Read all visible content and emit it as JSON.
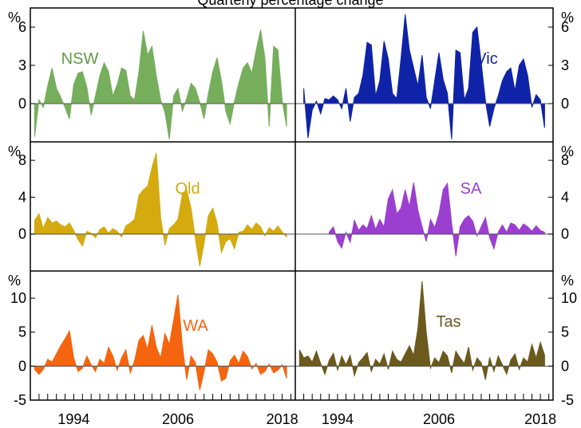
{
  "chart_data": {
    "type": "area",
    "title": "Quarterly percentage change",
    "unit_label": "%",
    "x_axis": {
      "ticks": [
        1994,
        2006,
        2018
      ],
      "range": [
        1989,
        2019.5
      ]
    },
    "panels": [
      {
        "name": "NSW",
        "color": "#76ae5c",
        "label_color": "#5e9a44",
        "y_ticks": [
          0,
          3,
          6
        ],
        "ylim": [
          -3,
          7.5
        ],
        "x": [
          1989.5,
          1990,
          1990.5,
          1991,
          1991.5,
          1992,
          1992.5,
          1993,
          1993.5,
          1994,
          1994.5,
          1995,
          1995.5,
          1996,
          1996.5,
          1997,
          1997.5,
          1998,
          1998.5,
          1999,
          1999.5,
          2000,
          2000.5,
          2001,
          2001.5,
          2002,
          2002.5,
          2003,
          2003.5,
          2004,
          2004.5,
          2005,
          2005.5,
          2006,
          2006.5,
          2007,
          2007.5,
          2008,
          2008.5,
          2009,
          2009.5,
          2010,
          2010.5,
          2011,
          2011.5,
          2012,
          2012.5,
          2013,
          2013.5,
          2014,
          2014.5,
          2015,
          2015.5,
          2016,
          2016.5,
          2017,
          2017.5,
          2018,
          2018.5
        ],
        "values": [
          -2.6,
          0.3,
          -0.3,
          1.4,
          2.8,
          1.2,
          0.5,
          -0.3,
          -1.2,
          1.5,
          2.4,
          2.5,
          1.3,
          -0.9,
          0.6,
          2.2,
          3.2,
          2.5,
          0.6,
          1.5,
          2.8,
          2.6,
          0.6,
          0.3,
          2.5,
          5.7,
          3.8,
          4.5,
          2.2,
          0.3,
          -0.7,
          -2.8,
          0.6,
          1.2,
          -0.6,
          0.4,
          1.6,
          1.2,
          0.1,
          -1.2,
          0.8,
          2.5,
          3.6,
          1.8,
          -0.6,
          -1.6,
          0.2,
          1.6,
          2.8,
          3.2,
          2.4,
          4.2,
          5.8,
          3.6,
          -1.8,
          4.5,
          4.2,
          0.2,
          -1.8
        ]
      },
      {
        "name": "Vic",
        "color": "#0f23a8",
        "label_color": "#0f23a8",
        "y_ticks": [
          0,
          3,
          6
        ],
        "ylim": [
          -3,
          7.5
        ],
        "x": [
          1990,
          1990.5,
          1991,
          1991.5,
          1992,
          1992.5,
          1993,
          1993.5,
          1994,
          1994.5,
          1995,
          1995.5,
          1996,
          1996.5,
          1997,
          1997.5,
          1998,
          1998.5,
          1999,
          1999.5,
          2000,
          2000.5,
          2001,
          2001.5,
          2002,
          2002.5,
          2003,
          2003.5,
          2004,
          2004.5,
          2005,
          2005.5,
          2006,
          2006.5,
          2007,
          2007.5,
          2008,
          2008.5,
          2009,
          2009.5,
          2010,
          2010.5,
          2011,
          2011.5,
          2012,
          2012.5,
          2013,
          2013.5,
          2014,
          2014.5,
          2015,
          2015.5,
          2016,
          2016.5,
          2017,
          2017.5,
          2018,
          2018.5
        ],
        "values": [
          1.2,
          -2.7,
          -0.5,
          0.2,
          -0.8,
          0.4,
          0.3,
          0.6,
          0.3,
          -0.4,
          1.2,
          -1.4,
          0.5,
          0.8,
          2.2,
          4.8,
          4.6,
          0.6,
          1.8,
          4.9,
          3.5,
          0.8,
          0.4,
          3.5,
          7.0,
          4.2,
          2.8,
          1.4,
          3.8,
          0.5,
          -0.4,
          1.8,
          4.0,
          1.9,
          0.8,
          -2.8,
          4.2,
          4.0,
          0.3,
          1.2,
          5.6,
          6.0,
          3.2,
          0.2,
          -1.8,
          -0.4,
          0.6,
          1.8,
          2.5,
          2.8,
          1.0,
          3.0,
          3.5,
          2.2,
          -0.3,
          0.7,
          0.3,
          -1.9
        ]
      },
      {
        "name": "Qld",
        "color": "#d4aa0e",
        "label_color": "#d4aa0e",
        "y_ticks": [
          0,
          4,
          8
        ],
        "ylim": [
          -4,
          10
        ],
        "x": [
          1989.5,
          1990,
          1990.5,
          1991,
          1991.5,
          1992,
          1992.5,
          1993,
          1993.5,
          1994,
          1994.5,
          1995,
          1995.5,
          1996,
          1996.5,
          1997,
          1997.5,
          1998,
          1998.5,
          1999,
          1999.5,
          2000,
          2000.5,
          2001,
          2001.5,
          2002,
          2002.5,
          2003,
          2003.5,
          2004,
          2004.5,
          2005,
          2005.5,
          2006,
          2006.5,
          2007,
          2007.5,
          2008,
          2008.5,
          2009,
          2009.5,
          2010,
          2010.5,
          2011,
          2011.5,
          2012,
          2012.5,
          2013,
          2013.5,
          2014,
          2014.5,
          2015,
          2015.5,
          2016,
          2016.5,
          2017,
          2017.5,
          2018,
          2018.5
        ],
        "values": [
          1.5,
          2.2,
          0.6,
          1.8,
          1.2,
          1.4,
          1.0,
          0.8,
          1.2,
          0.4,
          -0.6,
          -1.3,
          0.3,
          0.1,
          -0.4,
          0.5,
          0.8,
          0.1,
          0.6,
          0.3,
          -0.3,
          0.9,
          1.2,
          1.6,
          4.2,
          4.8,
          5.2,
          7.2,
          8.8,
          1.8,
          -1.2,
          0.6,
          1.0,
          1.6,
          4.3,
          4.8,
          2.8,
          -0.5,
          -3.5,
          -1.0,
          2.0,
          2.8,
          1.2,
          -2.0,
          -0.8,
          -0.5,
          -1.6,
          0.2,
          0.3,
          1.0,
          0.5,
          1.2,
          0.8,
          -0.2,
          0.7,
          0.3,
          0.9,
          0.2,
          -0.3
        ]
      },
      {
        "name": "SA",
        "color": "#9b3fd0",
        "label_color": "#9b3fd0",
        "y_ticks": [
          0,
          4,
          8
        ],
        "ylim": [
          -4,
          10
        ],
        "x": [
          1993,
          1993.5,
          1994,
          1994.5,
          1995,
          1995.5,
          1996,
          1996.5,
          1997,
          1997.5,
          1998,
          1998.5,
          1999,
          1999.5,
          2000,
          2000.5,
          2001,
          2001.5,
          2002,
          2002.5,
          2003,
          2003.5,
          2004,
          2004.5,
          2005,
          2005.5,
          2006,
          2006.5,
          2007,
          2007.5,
          2008,
          2008.5,
          2009,
          2009.5,
          2010,
          2010.5,
          2011,
          2011.5,
          2012,
          2012.5,
          2013,
          2013.5,
          2014,
          2014.5,
          2015,
          2015.5,
          2016,
          2016.5,
          2017,
          2017.5,
          2018,
          2018.5
        ],
        "values": [
          0.2,
          0.8,
          -0.8,
          -1.5,
          0.2,
          -0.9,
          1.5,
          0.4,
          1.0,
          0.6,
          2.0,
          0.5,
          1.6,
          0.8,
          3.8,
          4.8,
          2.2,
          2.8,
          4.8,
          3.0,
          5.6,
          2.6,
          0.8,
          -0.8,
          1.6,
          0.7,
          2.2,
          4.8,
          5.5,
          1.2,
          -2.4,
          0.8,
          1.6,
          2.0,
          1.4,
          -0.2,
          0.8,
          1.8,
          -0.4,
          -1.6,
          0.2,
          1.0,
          0.2,
          1.2,
          1.0,
          0.4,
          1.1,
          0.8,
          0.3,
          0.9,
          0.4,
          0.2
        ]
      },
      {
        "name": "WA",
        "color": "#f5650f",
        "label_color": "#f5650f",
        "y_ticks": [
          -5,
          0,
          5,
          10
        ],
        "ylim": [
          -5,
          14
        ],
        "x": [
          1989.5,
          1990,
          1990.5,
          1991,
          1991.5,
          1992,
          1992.5,
          1993,
          1993.5,
          1994,
          1994.5,
          1995,
          1995.5,
          1996,
          1996.5,
          1997,
          1997.5,
          1998,
          1998.5,
          1999,
          1999.5,
          2000,
          2000.5,
          2001,
          2001.5,
          2002,
          2002.5,
          2003,
          2003.5,
          2004,
          2004.5,
          2005,
          2005.5,
          2006,
          2006.5,
          2007,
          2007.5,
          2008,
          2008.5,
          2009,
          2009.5,
          2010,
          2010.5,
          2011,
          2011.5,
          2012,
          2012.5,
          2013,
          2013.5,
          2014,
          2014.5,
          2015,
          2015.5,
          2016,
          2016.5,
          2017,
          2017.5,
          2018,
          2018.5
        ],
        "values": [
          -0.5,
          -1.2,
          -0.5,
          1.0,
          0.6,
          1.8,
          3.0,
          4.0,
          5.2,
          1.2,
          -0.8,
          -0.3,
          1.5,
          0.2,
          -0.8,
          1.0,
          0.4,
          2.8,
          1.5,
          -0.6,
          1.2,
          2.4,
          -1.0,
          0.8,
          3.8,
          4.5,
          2.5,
          6.0,
          2.8,
          1.2,
          4.8,
          3.2,
          6.8,
          10.5,
          3.0,
          -2.0,
          1.5,
          0.5,
          -3.5,
          -0.8,
          2.4,
          1.8,
          0.6,
          -2.2,
          -1.8,
          0.8,
          1.6,
          0.4,
          2.2,
          1.4,
          -0.4,
          0.4,
          -1.2,
          -0.8,
          0.3,
          -1.0,
          -0.6,
          0.2,
          -1.8
        ]
      },
      {
        "name": "Tas",
        "color": "#6b5a1c",
        "label_color": "#6b5a1c",
        "y_ticks": [
          -5,
          0,
          5,
          10
        ],
        "ylim": [
          -5,
          14
        ],
        "x": [
          1989.5,
          1990,
          1990.5,
          1991,
          1991.5,
          1992,
          1992.5,
          1993,
          1993.5,
          1994,
          1994.5,
          1995,
          1995.5,
          1996,
          1996.5,
          1997,
          1997.5,
          1998,
          1998.5,
          1999,
          1999.5,
          2000,
          2000.5,
          2001,
          2001.5,
          2002,
          2002.5,
          2003,
          2003.5,
          2004,
          2004.5,
          2005,
          2005.5,
          2006,
          2006.5,
          2007,
          2007.5,
          2008,
          2008.5,
          2009,
          2009.5,
          2010,
          2010.5,
          2011,
          2011.5,
          2012,
          2012.5,
          2013,
          2013.5,
          2014,
          2014.5,
          2015,
          2015.5,
          2016,
          2016.5,
          2017,
          2017.5,
          2018,
          2018.5
        ],
        "values": [
          2.4,
          1.2,
          1.5,
          0.6,
          2.2,
          0.4,
          -1.2,
          0.8,
          1.9,
          -0.6,
          1.5,
          0.2,
          1.6,
          -1.4,
          0.5,
          1.2,
          2.0,
          -0.8,
          1.0,
          0.3,
          1.8,
          -0.5,
          2.2,
          1.0,
          0.6,
          1.8,
          3.0,
          1.6,
          5.5,
          12.5,
          5.0,
          -0.3,
          1.2,
          0.5,
          2.2,
          1.5,
          -1.0,
          2.2,
          1.2,
          0.4,
          2.8,
          -0.6,
          1.2,
          0.5,
          -2.0,
          1.3,
          -0.8,
          1.5,
          0.2,
          -1.2,
          0.9,
          1.8,
          -0.5,
          1.2,
          0.6,
          3.2,
          1.2,
          3.5,
          1.6
        ]
      }
    ]
  }
}
